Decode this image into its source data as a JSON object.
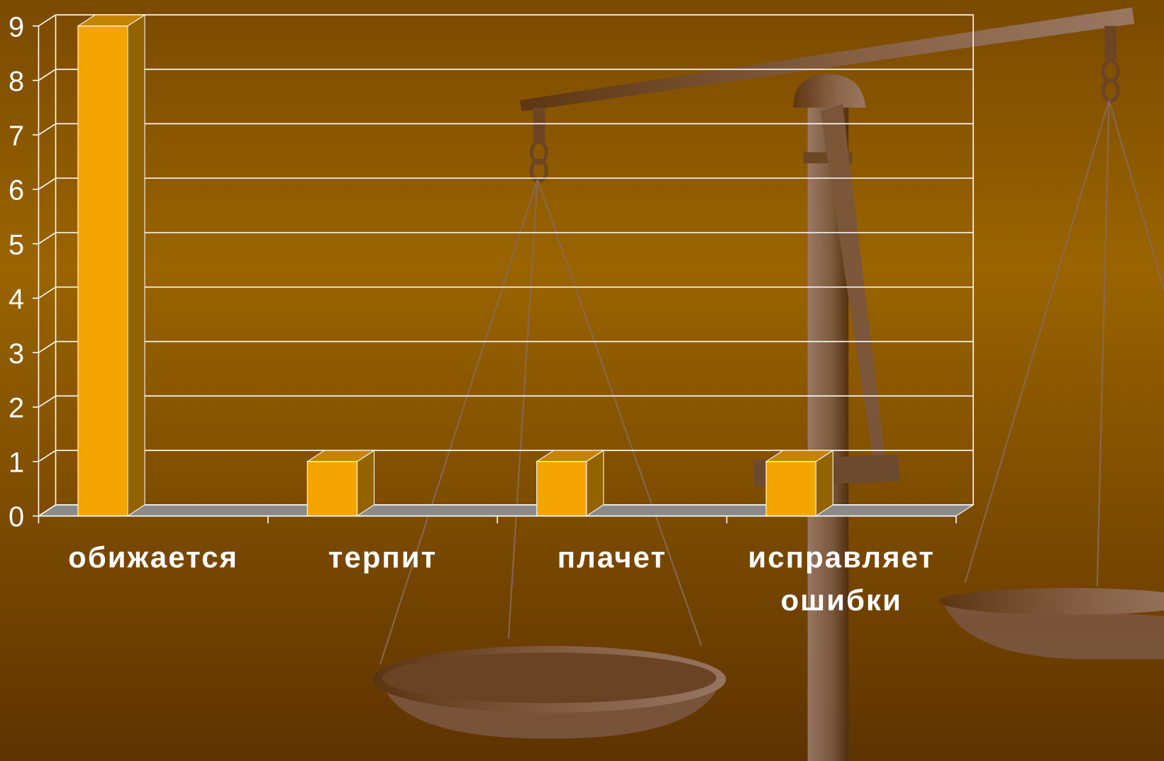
{
  "chart_data": {
    "type": "bar3d",
    "categories": [
      "обижается",
      "терпит",
      "плачет",
      "исправляет ошибки"
    ],
    "values": [
      9,
      1,
      1,
      1
    ],
    "color": "#f5a500",
    "ylim": [
      0,
      9
    ],
    "yticks": [
      0,
      1,
      2,
      3,
      4,
      5,
      6,
      7,
      8,
      9
    ],
    "grid": true
  }
}
